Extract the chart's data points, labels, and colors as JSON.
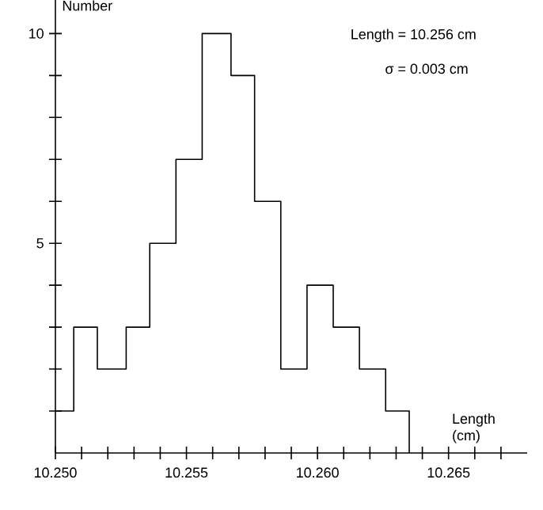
{
  "chart_data": {
    "type": "histogram",
    "bins": [
      10.25,
      10.2507,
      10.2516,
      10.2527,
      10.2536,
      10.2546,
      10.2556,
      10.2567,
      10.2576,
      10.2586,
      10.2596,
      10.2606,
      10.2616,
      10.2626,
      10.2635
    ],
    "values": [
      1,
      3,
      2,
      3,
      5,
      7,
      10,
      9,
      6,
      2,
      4,
      3,
      2,
      1
    ],
    "color": "#000000",
    "xlabel": "Length (cm)",
    "ylabel": "Number",
    "annotations": [
      "Length = 10.256 cm",
      "σ = 0.003 cm"
    ],
    "xlim": [
      10.25,
      10.268
    ],
    "ylim": [
      0,
      10.8
    ],
    "xticks": [
      {
        "value": 10.25,
        "label": "10.250"
      },
      {
        "value": 10.251,
        "label": null
      },
      {
        "value": 10.252,
        "label": null
      },
      {
        "value": 10.253,
        "label": null
      },
      {
        "value": 10.254,
        "label": null
      },
      10.255,
      {
        "value": 10.256,
        "label": null
      },
      {
        "value": 10.257,
        "label": null
      },
      {
        "value": 10.258,
        "label": null
      },
      {
        "value": 10.259,
        "label": null
      },
      {
        "value": 10.26,
        "label": "10.260"
      },
      {
        "value": 10.261,
        "label": null
      },
      {
        "value": 10.262,
        "label": null
      },
      {
        "value": 10.263,
        "label": null
      },
      {
        "value": 10.264,
        "label": null
      },
      10.265,
      {
        "value": 10.266,
        "label": null
      },
      {
        "value": 10.267,
        "label": null
      }
    ],
    "yticks": [
      {
        "value": 1,
        "label": null
      },
      {
        "value": 2,
        "label": null
      },
      {
        "value": 3,
        "label": null
      },
      {
        "value": 4,
        "label": null
      },
      5,
      {
        "value": 6,
        "label": null
      },
      {
        "value": 7,
        "label": null
      },
      {
        "value": 8,
        "label": null
      },
      {
        "value": 9,
        "label": null
      },
      10
    ],
    "grid": false
  }
}
